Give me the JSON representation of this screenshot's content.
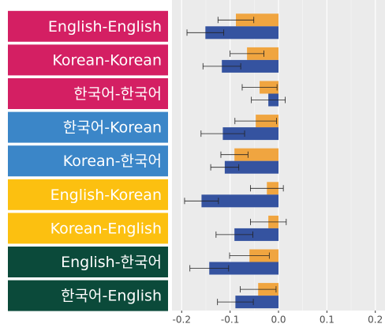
{
  "chart_data": {
    "type": "barh_error",
    "categories": [
      "English-English",
      "Korean-Korean",
      "한국어-한국어",
      "한국어-Korean",
      "Korean-한국어",
      "English-Korean",
      "Korean-English",
      "English-한국어",
      "한국어-English"
    ],
    "label_colors": [
      "#d41f63",
      "#d41f63",
      "#d41f63",
      "#3b86c8",
      "#3b86c8",
      "#fcc010",
      "#fcc010",
      "#0b4a3a",
      "#0b4a3a"
    ],
    "series": [
      {
        "color": "#f0a540",
        "values": [
          -0.088,
          -0.065,
          -0.039,
          -0.047,
          -0.091,
          -0.024,
          -0.021,
          -0.06,
          -0.042
        ],
        "errors": [
          0.037,
          0.035,
          0.036,
          0.043,
          0.028,
          0.034,
          0.037,
          0.041,
          0.037
        ]
      },
      {
        "color": "#3553a0",
        "values": [
          -0.151,
          -0.117,
          -0.021,
          -0.115,
          -0.111,
          -0.159,
          -0.091,
          -0.143,
          -0.089
        ],
        "errors": [
          0.038,
          0.039,
          0.035,
          0.045,
          0.029,
          0.035,
          0.038,
          0.04,
          0.037
        ]
      }
    ],
    "xlim": [
      -0.22,
      0.22
    ],
    "xticks": [
      -0.2,
      -0.1,
      {
        "value": 0,
        "label": "0.0"
      },
      0.1,
      0.2
    ],
    "grid": true
  }
}
